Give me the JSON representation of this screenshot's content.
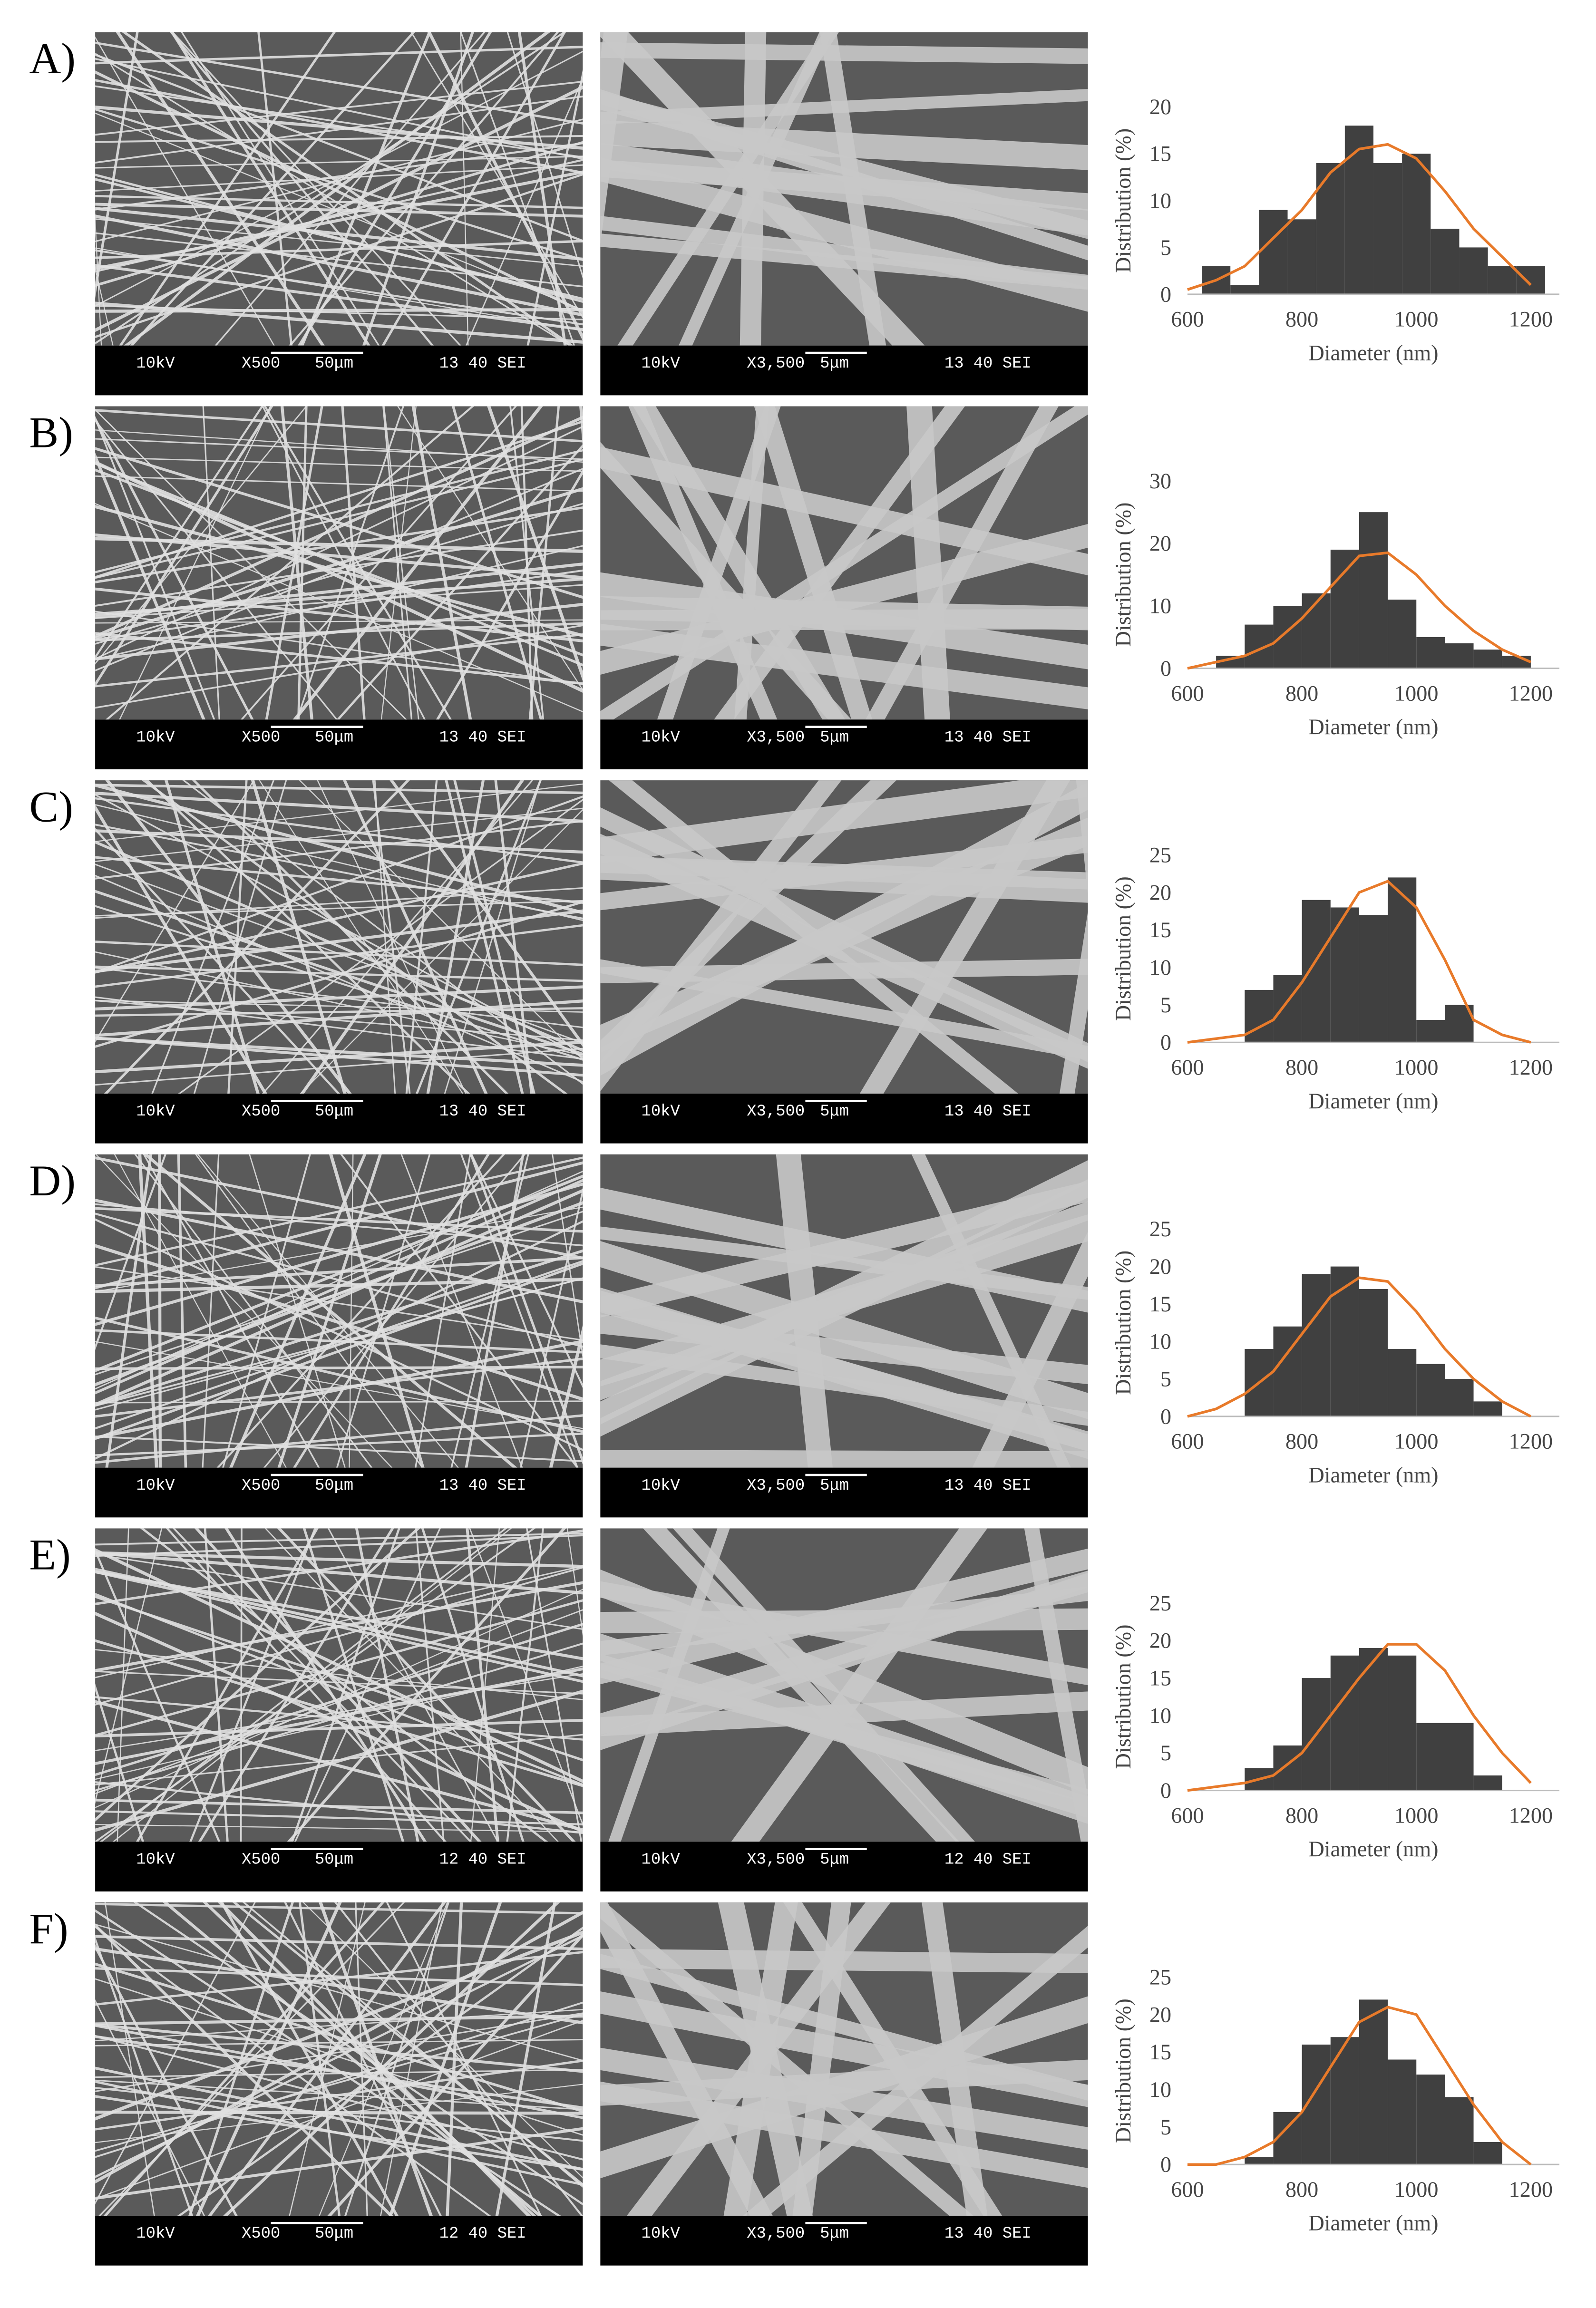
{
  "panels": [
    {
      "label": "A)",
      "sem": [
        [
          "10kV",
          "X500",
          "50μm",
          "13 40 SEI"
        ],
        [
          "10kV",
          "X3,500",
          "5μm",
          "13 40 SEI"
        ]
      ]
    },
    {
      "label": "B)",
      "sem": [
        [
          "10kV",
          "X500",
          "50μm",
          "13 40 SEI"
        ],
        [
          "10kV",
          "X3,500",
          "5μm",
          "13 40 SEI"
        ]
      ]
    },
    {
      "label": "C)",
      "sem": [
        [
          "10kV",
          "X500",
          "50μm",
          "13 40 SEI"
        ],
        [
          "10kV",
          "X3,500",
          "5μm",
          "13 40 SEI"
        ]
      ]
    },
    {
      "label": "D)",
      "sem": [
        [
          "10kV",
          "X500",
          "50μm",
          "13 40 SEI"
        ],
        [
          "10kV",
          "X3,500",
          "5μm",
          "13 40 SEI"
        ]
      ]
    },
    {
      "label": "E)",
      "sem": [
        [
          "10kV",
          "X500",
          "50μm",
          "12 40 SEI"
        ],
        [
          "10kV",
          "X3,500",
          "5μm",
          "12 40 SEI"
        ]
      ]
    },
    {
      "label": "F)",
      "sem": [
        [
          "10kV",
          "X500",
          "50μm",
          "12 40 SEI"
        ],
        [
          "10kV",
          "X3,500",
          "5μm",
          "13 40 SEI"
        ]
      ]
    }
  ],
  "chart_data": [
    {
      "type": "histogram",
      "xlabel": "Diameter (nm)",
      "ylabel": "Distribution (%)",
      "color": "#404040",
      "bins": [
        625,
        675,
        725,
        775,
        825,
        875,
        925,
        975,
        1025,
        1075,
        1125,
        1175,
        1225
      ],
      "counts": [
        3,
        1,
        9,
        8,
        14,
        18,
        14,
        15,
        7,
        5,
        3,
        3
      ],
      "line": {
        "color": "#e87a2a",
        "x": [
          600,
          650,
          700,
          750,
          800,
          850,
          900,
          950,
          1000,
          1050,
          1100,
          1150,
          1200
        ],
        "values": [
          0.5,
          1.5,
          3,
          6,
          9,
          13,
          15.5,
          16,
          14.5,
          11,
          7,
          4,
          1
        ]
      },
      "xlim": [
        600,
        1250
      ],
      "ylim": [
        0,
        20
      ],
      "xticks": [
        600,
        800,
        1000,
        1200
      ],
      "yticks": [
        0,
        5,
        10,
        15,
        20
      ]
    },
    {
      "type": "histogram",
      "xlabel": "Diameter (nm)",
      "ylabel": "Distribution (%)",
      "color": "#404040",
      "bins": [
        650,
        700,
        750,
        800,
        850,
        900,
        950,
        1000,
        1050,
        1100,
        1150,
        1200
      ],
      "counts": [
        2,
        7,
        10,
        12,
        19,
        25,
        11,
        5,
        4,
        3,
        2
      ],
      "line": {
        "color": "#e87a2a",
        "x": [
          600,
          650,
          700,
          750,
          800,
          850,
          900,
          950,
          1000,
          1050,
          1100,
          1150,
          1200
        ],
        "values": [
          0,
          1,
          2,
          4,
          8,
          13,
          18,
          18.5,
          15,
          10,
          6,
          3,
          1
        ]
      },
      "xlim": [
        600,
        1250
      ],
      "ylim": [
        0,
        30
      ],
      "xticks": [
        600,
        800,
        1000,
        1200
      ],
      "yticks": [
        0,
        10,
        20,
        30
      ]
    },
    {
      "type": "histogram",
      "xlabel": "Diameter (nm)",
      "ylabel": "Distribution (%)",
      "color": "#404040",
      "bins": [
        700,
        750,
        800,
        850,
        900,
        950,
        1000,
        1050,
        1100
      ],
      "counts": [
        7,
        9,
        19,
        18,
        17,
        22,
        3,
        5
      ],
      "line": {
        "color": "#e87a2a",
        "x": [
          600,
          650,
          700,
          750,
          800,
          850,
          900,
          950,
          1000,
          1050,
          1100,
          1150,
          1200
        ],
        "values": [
          0,
          0.5,
          1,
          3,
          8,
          14,
          20,
          21.5,
          18,
          11,
          3,
          1,
          0
        ]
      },
      "xlim": [
        600,
        1250
      ],
      "ylim": [
        0,
        25
      ],
      "xticks": [
        600,
        800,
        1000,
        1200
      ],
      "yticks": [
        0,
        5,
        10,
        15,
        20,
        25
      ]
    },
    {
      "type": "histogram",
      "xlabel": "Diameter (nm)",
      "ylabel": "Distribution (%)",
      "color": "#404040",
      "bins": [
        700,
        750,
        800,
        850,
        900,
        950,
        1000,
        1050,
        1100,
        1150
      ],
      "counts": [
        9,
        12,
        19,
        20,
        17,
        9,
        7,
        5,
        2
      ],
      "line": {
        "color": "#e87a2a",
        "x": [
          600,
          650,
          700,
          750,
          800,
          850,
          900,
          950,
          1000,
          1050,
          1100,
          1150,
          1200
        ],
        "values": [
          0,
          1,
          3,
          6,
          11,
          16,
          18.5,
          18,
          14,
          9,
          5,
          2,
          0
        ]
      },
      "xlim": [
        600,
        1250
      ],
      "ylim": [
        0,
        25
      ],
      "xticks": [
        600,
        800,
        1000,
        1200
      ],
      "yticks": [
        0,
        5,
        10,
        15,
        20,
        25
      ]
    },
    {
      "type": "histogram",
      "xlabel": "Diameter (nm)",
      "ylabel": "Distribution (%)",
      "color": "#404040",
      "bins": [
        700,
        750,
        800,
        850,
        900,
        950,
        1000,
        1050,
        1100,
        1150
      ],
      "counts": [
        3,
        6,
        15,
        18,
        19,
        18,
        9,
        9,
        2
      ],
      "line": {
        "color": "#e87a2a",
        "x": [
          600,
          650,
          700,
          750,
          800,
          850,
          900,
          950,
          1000,
          1050,
          1100,
          1150,
          1200
        ],
        "values": [
          0,
          0.5,
          1,
          2,
          5,
          10,
          15,
          19.5,
          19.5,
          16,
          10,
          5,
          1
        ]
      },
      "xlim": [
        600,
        1250
      ],
      "ylim": [
        0,
        25
      ],
      "xticks": [
        600,
        800,
        1000,
        1200
      ],
      "yticks": [
        0,
        5,
        10,
        15,
        20,
        25
      ]
    },
    {
      "type": "histogram",
      "xlabel": "Diameter (nm)",
      "ylabel": "Distribution (%)",
      "color": "#404040",
      "bins": [
        700,
        750,
        800,
        850,
        900,
        950,
        1000,
        1050,
        1100,
        1150
      ],
      "counts": [
        1,
        7,
        16,
        17,
        22,
        14,
        12,
        9,
        3
      ],
      "line": {
        "color": "#e87a2a",
        "x": [
          600,
          650,
          700,
          750,
          800,
          850,
          900,
          950,
          1000,
          1050,
          1100,
          1150,
          1200
        ],
        "values": [
          0,
          0,
          1,
          3,
          7,
          13,
          19,
          21,
          20,
          14,
          8,
          3,
          0
        ]
      },
      "xlim": [
        600,
        1250
      ],
      "ylim": [
        0,
        25
      ],
      "xticks": [
        600,
        800,
        1000,
        1200
      ],
      "yticks": [
        0,
        5,
        10,
        15,
        20,
        25
      ]
    }
  ]
}
